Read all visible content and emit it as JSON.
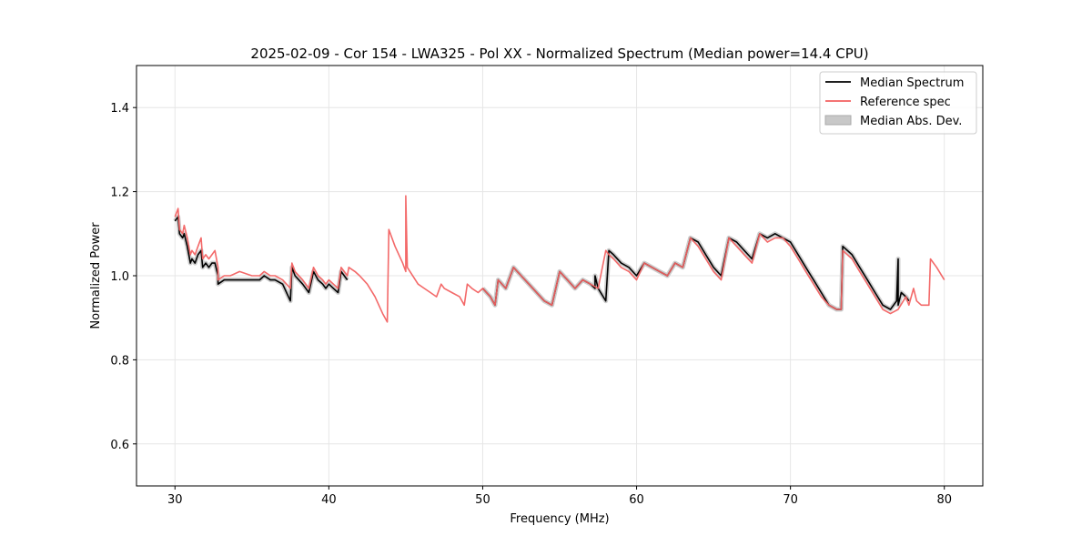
{
  "chart_data": {
    "type": "line",
    "title": "2025-02-09 - Cor 154 - LWA325 - Pol XX - Normalized Spectrum (Median power=14.4 CPU)",
    "xlabel": "Frequency (MHz)",
    "ylabel": "Normalized Power",
    "xlim": [
      27.5,
      82.5
    ],
    "ylim": [
      0.5,
      1.5
    ],
    "xticks": [
      30,
      40,
      50,
      60,
      70,
      80
    ],
    "yticks": [
      0.6,
      0.8,
      1.0,
      1.2,
      1.4
    ],
    "xtick_labels": [
      "30",
      "40",
      "50",
      "60",
      "70",
      "80"
    ],
    "ytick_labels": [
      "0.6",
      "0.8",
      "1.0",
      "1.2",
      "1.4"
    ],
    "grid": true,
    "legend_position": "top-right",
    "legend": [
      {
        "label": "Median Spectrum",
        "color": "#000000",
        "kind": "line"
      },
      {
        "label": "Reference spec",
        "color": "#f26161",
        "kind": "line"
      },
      {
        "label": "Median Abs. Dev.",
        "color": "#c8c8c8",
        "kind": "patch"
      }
    ],
    "series": [
      {
        "name": "Reference spec",
        "color": "#f26161",
        "x": [
          30.0,
          30.2,
          30.3,
          30.5,
          30.6,
          30.8,
          31.0,
          31.1,
          31.3,
          31.5,
          31.7,
          31.8,
          32.0,
          32.2,
          32.4,
          32.6,
          32.8,
          32.8,
          33.2,
          33.6,
          34.2,
          35.0,
          35.5,
          35.8,
          36.2,
          36.5,
          37.0,
          37.5,
          37.6,
          37.8,
          38.3,
          38.7,
          39.0,
          39.3,
          39.6,
          39.8,
          40.0,
          40.3,
          40.6,
          40.8,
          41.2,
          41.3,
          41.7,
          42.0,
          42.5,
          43.0,
          43.5,
          43.8,
          43.9,
          44.3,
          44.8,
          45.0,
          45.0,
          45.1,
          45.8,
          46.2,
          46.6,
          47.0,
          47.3,
          47.5,
          48.0,
          48.5,
          48.8,
          49.0,
          49.3,
          49.7,
          50.0,
          50.5,
          50.8,
          51.0,
          51.5,
          52.0,
          52.5,
          53.0,
          54.0,
          54.5,
          55.0,
          55.5,
          56.0,
          56.5,
          57.0,
          57.5,
          58.0,
          58.2,
          58.5,
          59.0,
          59.5,
          60.0,
          60.5,
          61.0,
          61.5,
          62.0,
          62.5,
          63.0,
          63.5,
          64.0,
          64.5,
          65.0,
          65.5,
          66.0,
          66.5,
          67.0,
          67.5,
          68.0,
          68.5,
          69.0,
          69.5,
          70.0,
          70.5,
          71.0,
          71.5,
          72.0,
          72.5,
          73.0,
          73.3,
          73.4,
          74.0,
          74.5,
          75.0,
          75.5,
          76.0,
          76.5,
          77.0,
          77.5,
          77.7,
          78.0,
          78.2,
          78.5,
          79.0,
          79.1,
          79.5,
          80.0
        ],
        "values": [
          1.14,
          1.16,
          1.11,
          1.1,
          1.12,
          1.09,
          1.05,
          1.06,
          1.05,
          1.07,
          1.09,
          1.04,
          1.05,
          1.04,
          1.05,
          1.06,
          1.02,
          0.99,
          1.0,
          1.0,
          1.01,
          1.0,
          1.0,
          1.01,
          1.0,
          1.0,
          0.99,
          0.97,
          1.03,
          1.01,
          0.99,
          0.97,
          1.02,
          1.0,
          0.99,
          0.98,
          0.99,
          0.98,
          0.97,
          1.02,
          1.0,
          1.02,
          1.01,
          1.0,
          0.98,
          0.95,
          0.91,
          0.89,
          1.11,
          1.07,
          1.03,
          1.01,
          1.19,
          1.02,
          0.98,
          0.97,
          0.96,
          0.95,
          0.98,
          0.97,
          0.96,
          0.95,
          0.93,
          0.98,
          0.97,
          0.96,
          0.97,
          0.95,
          0.93,
          0.99,
          0.97,
          1.02,
          1.0,
          0.98,
          0.94,
          0.93,
          1.01,
          0.99,
          0.97,
          0.99,
          0.98,
          0.97,
          1.06,
          1.05,
          1.04,
          1.02,
          1.01,
          0.99,
          1.03,
          1.02,
          1.01,
          1.0,
          1.03,
          1.02,
          1.09,
          1.07,
          1.04,
          1.01,
          0.99,
          1.09,
          1.07,
          1.05,
          1.03,
          1.1,
          1.08,
          1.09,
          1.09,
          1.07,
          1.04,
          1.01,
          0.98,
          0.95,
          0.93,
          0.92,
          0.92,
          1.06,
          1.04,
          1.01,
          0.98,
          0.95,
          0.92,
          0.91,
          0.92,
          0.95,
          0.93,
          0.97,
          0.94,
          0.93,
          0.93,
          1.04,
          1.02,
          0.99
        ]
      },
      {
        "name": "Median Spectrum",
        "color": "#000000",
        "x": [
          30.0,
          30.2,
          30.3,
          30.5,
          30.6,
          30.8,
          31.0,
          31.1,
          31.3,
          31.5,
          31.7,
          31.8,
          32.0,
          32.2,
          32.4,
          32.6,
          32.8,
          32.8,
          33.2,
          33.6,
          34.2,
          35.0,
          35.5,
          35.8,
          36.2,
          36.5,
          37.0,
          37.5,
          37.6,
          37.8,
          38.3,
          38.7,
          39.0,
          39.3,
          39.6,
          39.8,
          40.0,
          40.3,
          40.6,
          40.8,
          41.2,
          null,
          50.0,
          50.5,
          50.8,
          51.0,
          51.5,
          52.0,
          52.5,
          53.0,
          54.0,
          54.5,
          55.0,
          55.5,
          56.0,
          56.5,
          57.0,
          57.3,
          57.3,
          57.5,
          58.0,
          58.2,
          58.5,
          59.0,
          59.5,
          60.0,
          60.5,
          61.0,
          61.5,
          62.0,
          62.5,
          63.0,
          63.5,
          64.0,
          64.5,
          65.0,
          65.5,
          66.0,
          66.5,
          67.0,
          67.5,
          68.0,
          68.5,
          69.0,
          69.5,
          70.0,
          70.5,
          71.0,
          71.5,
          72.0,
          72.5,
          73.0,
          73.3,
          73.4,
          74.0,
          74.5,
          75.0,
          75.5,
          76.0,
          76.5,
          76.9,
          77.0,
          77.0,
          77.2,
          77.5,
          77.7
        ],
        "values": [
          1.13,
          1.14,
          1.1,
          1.09,
          1.1,
          1.07,
          1.03,
          1.04,
          1.03,
          1.05,
          1.06,
          1.02,
          1.03,
          1.02,
          1.03,
          1.03,
          1.0,
          0.98,
          0.99,
          0.99,
          0.99,
          0.99,
          0.99,
          1.0,
          0.99,
          0.99,
          0.98,
          0.94,
          1.02,
          1.0,
          0.98,
          0.96,
          1.01,
          0.99,
          0.98,
          0.97,
          0.98,
          0.97,
          0.96,
          1.01,
          0.99,
          null,
          0.97,
          0.95,
          0.93,
          0.99,
          0.97,
          1.02,
          1.0,
          0.98,
          0.94,
          0.93,
          1.01,
          0.99,
          0.97,
          0.99,
          0.98,
          0.97,
          1.0,
          0.97,
          0.94,
          1.06,
          1.05,
          1.03,
          1.02,
          1.0,
          1.03,
          1.02,
          1.01,
          1.0,
          1.03,
          1.02,
          1.09,
          1.08,
          1.05,
          1.02,
          1.0,
          1.09,
          1.08,
          1.06,
          1.04,
          1.1,
          1.09,
          1.1,
          1.09,
          1.08,
          1.05,
          1.02,
          0.99,
          0.96,
          0.93,
          0.92,
          0.92,
          1.07,
          1.05,
          1.02,
          0.99,
          0.96,
          0.93,
          0.92,
          0.94,
          1.04,
          0.93,
          0.96,
          0.95,
          0.94
        ]
      }
    ]
  }
}
